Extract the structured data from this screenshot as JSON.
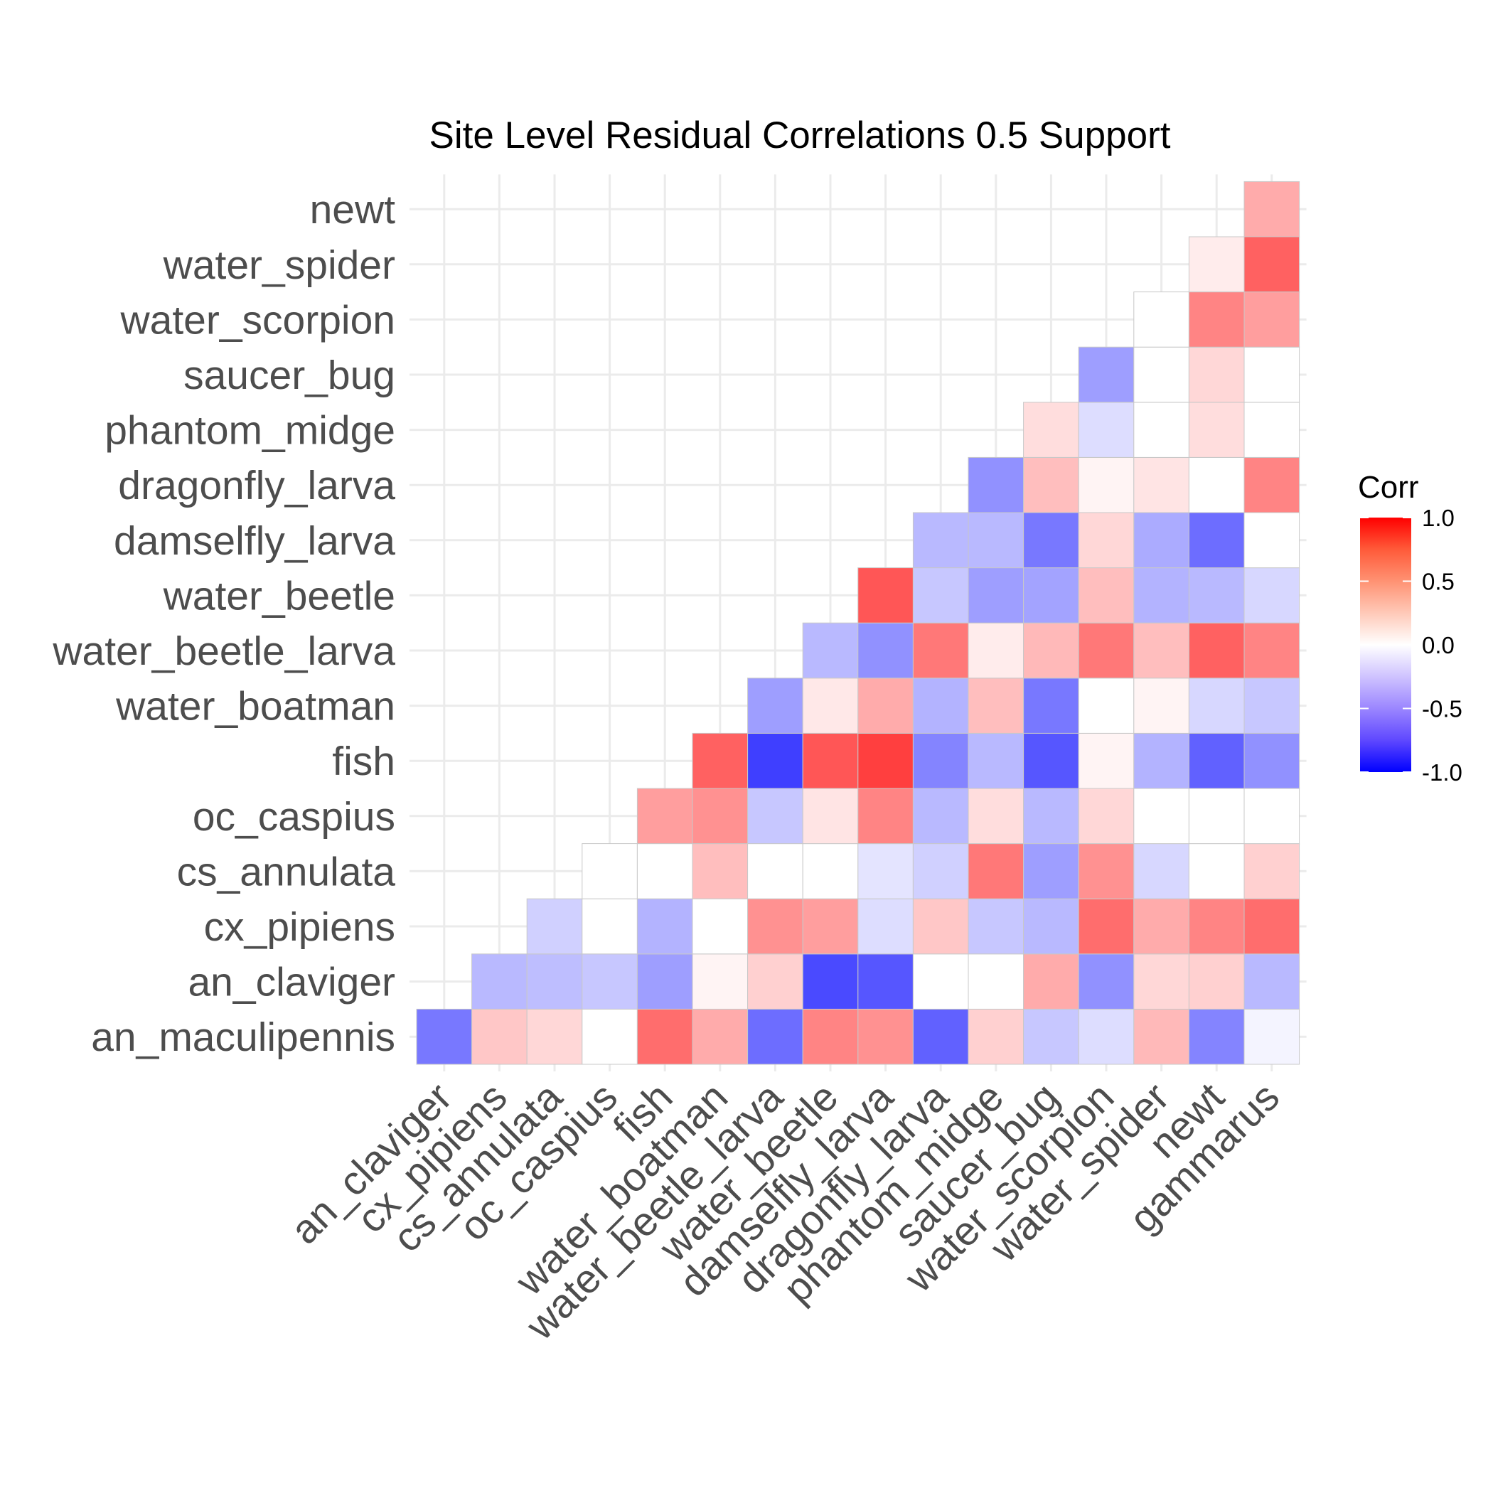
{
  "chart_data": {
    "type": "heatmap",
    "title": "Site Level Residual Correlations 0.5 Support",
    "row_labels": [
      "an_maculipennis",
      "an_claviger",
      "cx_pipiens",
      "cs_annulata",
      "oc_caspius",
      "fish",
      "water_boatman",
      "water_beetle_larva",
      "water_beetle",
      "damselfly_larva",
      "dragonfly_larva",
      "phantom_midge",
      "saucer_bug",
      "water_scorpion",
      "water_spider",
      "newt"
    ],
    "col_labels": [
      "an_claviger",
      "cx_pipiens",
      "cs_annulata",
      "oc_caspius",
      "fish",
      "water_boatman",
      "water_beetle_larva",
      "water_beetle",
      "damselfly_larva",
      "dragonfly_larva",
      "phantom_midge",
      "saucer_bug",
      "water_scorpion",
      "water_spider",
      "newt",
      "gammarus"
    ],
    "values": [
      [
        -0.45,
        0.15,
        0.1,
        0.0,
        0.5,
        0.25,
        -0.5,
        0.4,
        0.35,
        -0.55,
        0.12,
        -0.15,
        -0.08,
        0.2,
        -0.4,
        -0.02
      ],
      [
        null,
        -0.2,
        -0.18,
        -0.15,
        -0.3,
        0.02,
        0.12,
        -0.65,
        -0.6,
        0.0,
        0.0,
        0.25,
        -0.35,
        0.1,
        0.12,
        -0.2
      ],
      [
        null,
        null,
        -0.12,
        0.0,
        -0.22,
        0.0,
        0.35,
        0.3,
        -0.08,
        0.15,
        -0.15,
        -0.2,
        0.5,
        0.25,
        0.4,
        0.5
      ],
      [
        null,
        null,
        null,
        0.0,
        0.0,
        0.18,
        0.0,
        0.0,
        -0.06,
        -0.12,
        0.45,
        -0.3,
        0.35,
        -0.1,
        0.0,
        0.12
      ],
      [
        null,
        null,
        null,
        null,
        0.3,
        0.35,
        -0.15,
        0.06,
        0.4,
        -0.2,
        0.08,
        -0.2,
        0.1,
        0.0,
        0.0,
        0.0
      ],
      [
        null,
        null,
        null,
        null,
        null,
        0.55,
        -0.7,
        0.6,
        0.7,
        -0.4,
        -0.2,
        -0.6,
        0.02,
        -0.22,
        -0.55,
        -0.35
      ],
      [
        null,
        null,
        null,
        null,
        null,
        null,
        -0.3,
        0.05,
        0.25,
        -0.22,
        0.18,
        -0.45,
        0.0,
        0.02,
        -0.1,
        -0.15
      ],
      [
        null,
        null,
        null,
        null,
        null,
        null,
        null,
        -0.2,
        -0.35,
        0.45,
        0.04,
        0.2,
        0.45,
        0.18,
        0.55,
        0.4
      ],
      [
        null,
        null,
        null,
        null,
        null,
        null,
        null,
        null,
        0.6,
        -0.15,
        -0.3,
        -0.28,
        0.18,
        -0.22,
        -0.2,
        -0.1
      ],
      [
        null,
        null,
        null,
        null,
        null,
        null,
        null,
        null,
        null,
        -0.2,
        -0.2,
        -0.45,
        0.1,
        -0.25,
        -0.5,
        0.0
      ],
      [
        null,
        null,
        null,
        null,
        null,
        null,
        null,
        null,
        null,
        null,
        -0.35,
        0.18,
        0.02,
        0.06,
        0.0,
        0.4
      ],
      [
        null,
        null,
        null,
        null,
        null,
        null,
        null,
        null,
        null,
        null,
        null,
        0.08,
        -0.08,
        0.0,
        0.08,
        0.0
      ],
      [
        null,
        null,
        null,
        null,
        null,
        null,
        null,
        null,
        null,
        null,
        null,
        null,
        -0.3,
        0.0,
        0.1,
        0.0
      ],
      [
        null,
        null,
        null,
        null,
        null,
        null,
        null,
        null,
        null,
        null,
        null,
        null,
        null,
        0.0,
        0.4,
        0.3
      ],
      [
        null,
        null,
        null,
        null,
        null,
        null,
        null,
        null,
        null,
        null,
        null,
        null,
        null,
        null,
        0.04,
        0.55
      ],
      [
        null,
        null,
        null,
        null,
        null,
        null,
        null,
        null,
        null,
        null,
        null,
        null,
        null,
        null,
        null,
        0.25
      ]
    ],
    "color_scale": {
      "low": "#0000ff",
      "mid": "#ffffff",
      "high": "#ff0000",
      "limits": [
        -1.0,
        1.0
      ]
    },
    "legend": {
      "title": "Corr",
      "ticks": [
        "1.0",
        "0.5",
        "0.0",
        "-0.5",
        "-1.0"
      ],
      "tick_values": [
        1.0,
        0.5,
        0.0,
        -0.5,
        -1.0
      ],
      "placement": "right"
    },
    "grid": true
  }
}
